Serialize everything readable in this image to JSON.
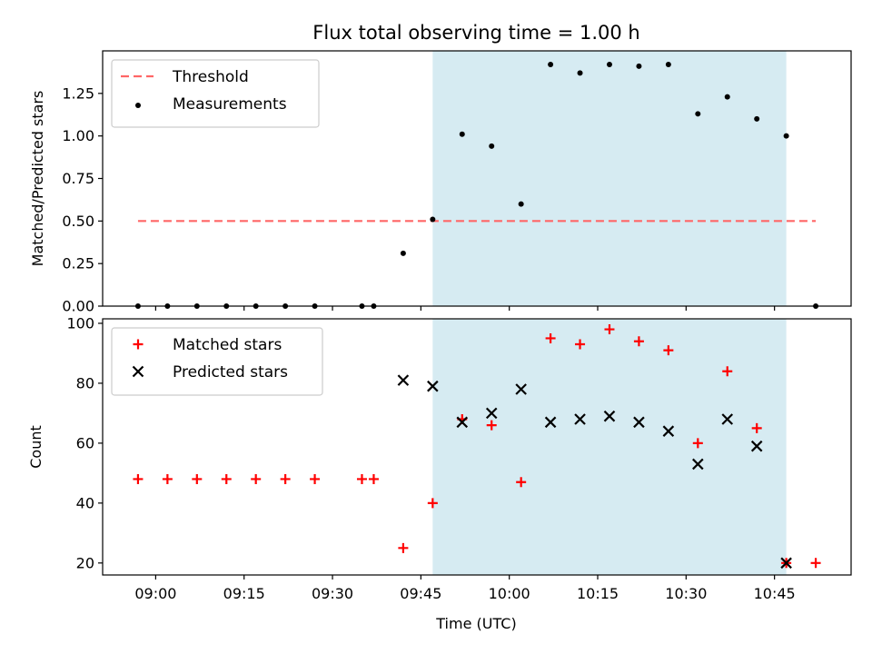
{
  "chart_data": [
    {
      "type": "scatter",
      "title": "Flux total observing time = 1.00 h",
      "xlabel": "",
      "ylabel": "Matched/Predicted stars",
      "xlim": [
        "08:51",
        "10:58"
      ],
      "ylim": [
        0,
        1.5
      ],
      "yticks": [
        "0.00",
        "0.25",
        "0.50",
        "0.75",
        "1.00",
        "1.25"
      ],
      "grid": false,
      "legend_position": "top-left",
      "highlight_span": {
        "start": "09:47",
        "end": "10:47",
        "color": "#add8e6"
      },
      "threshold": {
        "name": "Threshold",
        "value": 0.5,
        "x_start": "08:57",
        "x_end": "10:52",
        "color": "#ff6666",
        "style": "dashed"
      },
      "series": [
        {
          "name": "Measurements",
          "marker": "dot",
          "color": "#000000",
          "points": [
            [
              "08:57",
              0.0
            ],
            [
              "09:02",
              0.0
            ],
            [
              "09:07",
              0.0
            ],
            [
              "09:12",
              0.0
            ],
            [
              "09:17",
              0.0
            ],
            [
              "09:22",
              0.0
            ],
            [
              "09:27",
              0.0
            ],
            [
              "09:35",
              0.0
            ],
            [
              "09:37",
              0.0
            ],
            [
              "09:42",
              0.31
            ],
            [
              "09:47",
              0.51
            ],
            [
              "09:52",
              1.01
            ],
            [
              "09:57",
              0.94
            ],
            [
              "10:02",
              0.6
            ],
            [
              "10:07",
              1.42
            ],
            [
              "10:12",
              1.37
            ],
            [
              "10:17",
              1.42
            ],
            [
              "10:22",
              1.41
            ],
            [
              "10:27",
              1.42
            ],
            [
              "10:32",
              1.13
            ],
            [
              "10:37",
              1.23
            ],
            [
              "10:42",
              1.1
            ],
            [
              "10:47",
              1.0
            ],
            [
              "10:52",
              0.0
            ]
          ]
        }
      ]
    },
    {
      "type": "scatter",
      "title": "",
      "xlabel": "Time (UTC)",
      "ylabel": "Count",
      "xlim": [
        "08:51",
        "10:58"
      ],
      "ylim": [
        16,
        101.5
      ],
      "yticks": [
        "20",
        "40",
        "60",
        "80",
        "100"
      ],
      "xticks": [
        "09:00",
        "09:15",
        "09:30",
        "09:45",
        "10:00",
        "10:15",
        "10:30",
        "10:45"
      ],
      "grid": false,
      "legend_position": "top-left",
      "highlight_span": {
        "start": "09:47",
        "end": "10:47",
        "color": "#add8e6"
      },
      "series": [
        {
          "name": "Matched stars",
          "marker": "plus",
          "color": "#ff0000",
          "points": [
            [
              "08:57",
              48
            ],
            [
              "09:02",
              48
            ],
            [
              "09:07",
              48
            ],
            [
              "09:12",
              48
            ],
            [
              "09:17",
              48
            ],
            [
              "09:22",
              48
            ],
            [
              "09:27",
              48
            ],
            [
              "09:35",
              48
            ],
            [
              "09:37",
              48
            ],
            [
              "09:42",
              25
            ],
            [
              "09:47",
              40
            ],
            [
              "09:52",
              68
            ],
            [
              "09:57",
              66
            ],
            [
              "10:02",
              47
            ],
            [
              "10:07",
              95
            ],
            [
              "10:12",
              93
            ],
            [
              "10:17",
              98
            ],
            [
              "10:22",
              94
            ],
            [
              "10:27",
              91
            ],
            [
              "10:32",
              60
            ],
            [
              "10:37",
              84
            ],
            [
              "10:42",
              65
            ],
            [
              "10:47",
              20
            ],
            [
              "10:52",
              20
            ]
          ]
        },
        {
          "name": "Predicted stars",
          "marker": "x",
          "color": "#000000",
          "points": [
            [
              "09:42",
              81
            ],
            [
              "09:47",
              79
            ],
            [
              "09:52",
              67
            ],
            [
              "09:57",
              70
            ],
            [
              "10:02",
              78
            ],
            [
              "10:07",
              67
            ],
            [
              "10:12",
              68
            ],
            [
              "10:17",
              69
            ],
            [
              "10:22",
              67
            ],
            [
              "10:27",
              64
            ],
            [
              "10:32",
              53
            ],
            [
              "10:37",
              68
            ],
            [
              "10:42",
              59
            ],
            [
              "10:47",
              20
            ]
          ]
        }
      ]
    }
  ]
}
